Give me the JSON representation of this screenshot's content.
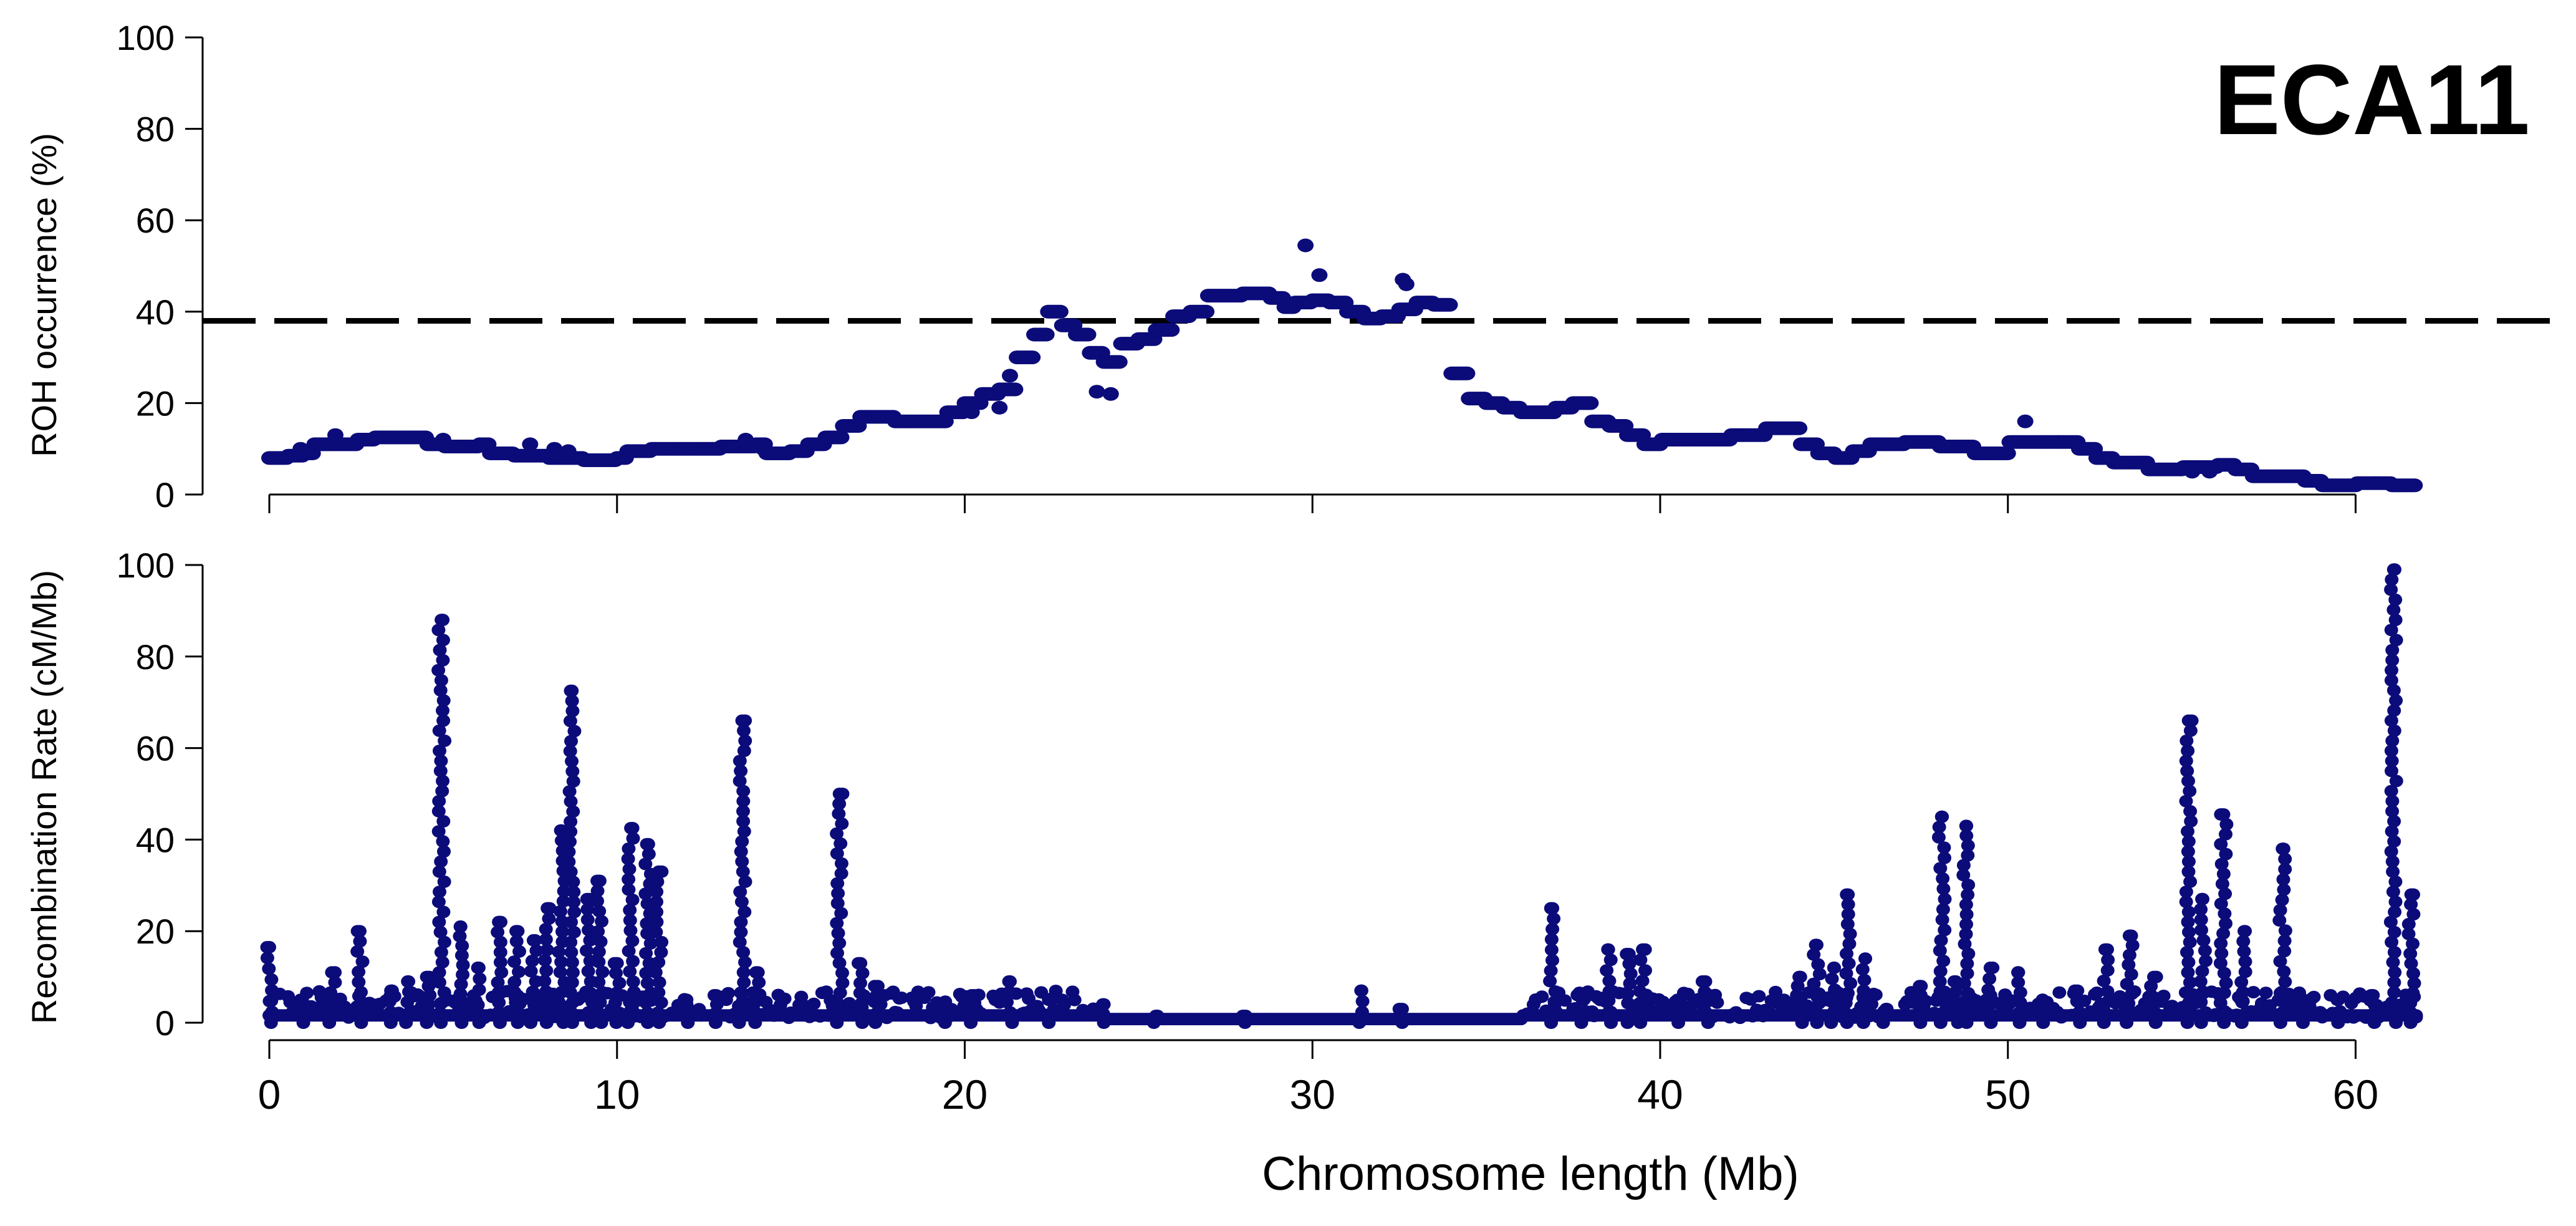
{
  "figure_label": "ECA11",
  "colors": {
    "points": "#0b0b7a",
    "threshold": "#000000",
    "axis": "#000000"
  },
  "chart_data": [
    {
      "type": "scatter",
      "name": "roh",
      "title": "",
      "ylabel": "ROH occurrence (%)",
      "xlabel": "",
      "xlim": [
        0,
        62
      ],
      "ylim": [
        0,
        100
      ],
      "yticks": [
        0,
        20,
        40,
        60,
        80,
        100
      ],
      "xticks": [
        0,
        10,
        20,
        30,
        40,
        50,
        60
      ],
      "threshold": 38,
      "threshold_style": "dashed",
      "profile": [
        [
          0.0,
          8
        ],
        [
          0.5,
          8.5
        ],
        [
          1.0,
          9
        ],
        [
          1.3,
          11
        ],
        [
          2.0,
          11
        ],
        [
          2.5,
          12
        ],
        [
          3.0,
          12.5
        ],
        [
          4.0,
          12.5
        ],
        [
          4.5,
          11
        ],
        [
          5.0,
          10.5
        ],
        [
          6.0,
          11
        ],
        [
          6.3,
          9
        ],
        [
          7.0,
          8.5
        ],
        [
          8.0,
          8
        ],
        [
          9.0,
          7.5
        ],
        [
          10.0,
          8
        ],
        [
          10.3,
          9.5
        ],
        [
          11.0,
          10
        ],
        [
          12.0,
          10
        ],
        [
          13.0,
          10.5
        ],
        [
          14.0,
          11
        ],
        [
          14.3,
          9
        ],
        [
          15.0,
          9.5
        ],
        [
          15.5,
          11
        ],
        [
          16.0,
          12.5
        ],
        [
          16.5,
          15
        ],
        [
          17.0,
          17
        ],
        [
          17.5,
          17
        ],
        [
          18.0,
          16
        ],
        [
          19.0,
          16
        ],
        [
          19.5,
          18
        ],
        [
          20.0,
          20
        ],
        [
          20.5,
          22
        ],
        [
          21.0,
          23
        ],
        [
          21.5,
          30
        ],
        [
          22.0,
          35
        ],
        [
          22.4,
          40
        ],
        [
          22.8,
          37
        ],
        [
          23.2,
          35
        ],
        [
          23.6,
          31
        ],
        [
          24.0,
          29
        ],
        [
          24.5,
          33
        ],
        [
          25.0,
          34
        ],
        [
          25.5,
          36
        ],
        [
          26.0,
          39
        ],
        [
          26.5,
          40
        ],
        [
          27.0,
          43.5
        ],
        [
          28.0,
          44
        ],
        [
          28.8,
          43
        ],
        [
          29.2,
          41
        ],
        [
          29.5,
          42
        ],
        [
          30.0,
          42.5
        ],
        [
          30.5,
          42
        ],
        [
          31.0,
          40
        ],
        [
          31.5,
          38.5
        ],
        [
          32.0,
          39
        ],
        [
          32.5,
          40.5
        ],
        [
          33.0,
          42
        ],
        [
          33.5,
          41.5
        ],
        [
          34.0,
          26.5
        ],
        [
          34.5,
          21
        ],
        [
          35.0,
          20
        ],
        [
          35.5,
          19
        ],
        [
          36.0,
          18
        ],
        [
          36.5,
          18
        ],
        [
          37.0,
          19
        ],
        [
          37.5,
          20
        ],
        [
          38.0,
          16
        ],
        [
          38.5,
          15
        ],
        [
          39.0,
          13
        ],
        [
          39.5,
          11
        ],
        [
          40.0,
          12
        ],
        [
          41.0,
          12
        ],
        [
          42.0,
          13
        ],
        [
          43.0,
          14.5
        ],
        [
          44.0,
          11
        ],
        [
          44.5,
          9
        ],
        [
          45.0,
          8
        ],
        [
          45.5,
          9.5
        ],
        [
          46.0,
          11
        ],
        [
          47.0,
          11.5
        ],
        [
          48.0,
          10.5
        ],
        [
          49.0,
          9
        ],
        [
          50.0,
          11.5
        ],
        [
          51.0,
          11.5
        ],
        [
          52.0,
          10
        ],
        [
          52.5,
          8
        ],
        [
          53.0,
          7
        ],
        [
          54.0,
          5.5
        ],
        [
          55.0,
          6
        ],
        [
          56.0,
          6.5
        ],
        [
          56.5,
          5.5
        ],
        [
          57.0,
          4
        ],
        [
          58.0,
          4
        ],
        [
          58.5,
          3
        ],
        [
          59.0,
          2
        ],
        [
          60.0,
          2.5
        ],
        [
          61.0,
          2
        ],
        [
          61.7,
          1.5
        ]
      ],
      "outliers": [
        [
          0.9,
          10
        ],
        [
          1.9,
          13
        ],
        [
          5.0,
          12
        ],
        [
          7.5,
          11
        ],
        [
          8.2,
          10
        ],
        [
          8.6,
          9.5
        ],
        [
          13.7,
          12
        ],
        [
          14.2,
          10
        ],
        [
          20.2,
          18
        ],
        [
          21.0,
          19
        ],
        [
          21.3,
          26
        ],
        [
          23.8,
          22.5
        ],
        [
          24.2,
          22
        ],
        [
          29.8,
          54.5
        ],
        [
          30.2,
          48
        ],
        [
          32.6,
          47
        ],
        [
          32.7,
          46
        ],
        [
          50.5,
          16
        ],
        [
          55.3,
          5
        ],
        [
          55.8,
          5
        ]
      ]
    },
    {
      "type": "scatter",
      "name": "recombination",
      "title": "",
      "ylabel": "Recombination Rate (cM/Mb)",
      "xlabel": "Chromosome length (Mb)",
      "xlim": [
        0,
        62
      ],
      "ylim": [
        0,
        100
      ],
      "yticks": [
        0,
        20,
        40,
        60,
        80,
        100
      ],
      "xticks": [
        0,
        10,
        20,
        30,
        40,
        50,
        60
      ],
      "peaks": [
        [
          0.0,
          16.5
        ],
        [
          0.9,
          5
        ],
        [
          1.8,
          11
        ],
        [
          2.6,
          20
        ],
        [
          3.5,
          7
        ],
        [
          4.0,
          9
        ],
        [
          4.6,
          10
        ],
        [
          4.95,
          88
        ],
        [
          5.5,
          21
        ],
        [
          6.0,
          12
        ],
        [
          6.6,
          22
        ],
        [
          7.1,
          20
        ],
        [
          7.6,
          18
        ],
        [
          8.0,
          25
        ],
        [
          8.4,
          42
        ],
        [
          8.7,
          72.5
        ],
        [
          9.2,
          27
        ],
        [
          9.5,
          31
        ],
        [
          10.0,
          13
        ],
        [
          10.4,
          42.5
        ],
        [
          10.9,
          39
        ],
        [
          11.2,
          33
        ],
        [
          12.0,
          5
        ],
        [
          12.8,
          6
        ],
        [
          13.6,
          66
        ],
        [
          14.0,
          11
        ],
        [
          16.4,
          50
        ],
        [
          17.0,
          13
        ],
        [
          17.5,
          8
        ],
        [
          19.5,
          3
        ],
        [
          20.2,
          6
        ],
        [
          21.3,
          9
        ],
        [
          22.5,
          5
        ],
        [
          24.0,
          4
        ],
        [
          25.5,
          1.5
        ],
        [
          28.0,
          1.5
        ],
        [
          31.4,
          7
        ],
        [
          32.5,
          3
        ],
        [
          36.9,
          25
        ],
        [
          37.8,
          5
        ],
        [
          38.5,
          16
        ],
        [
          39.1,
          15
        ],
        [
          39.5,
          16
        ],
        [
          40.5,
          5
        ],
        [
          41.3,
          9
        ],
        [
          44.0,
          10
        ],
        [
          44.5,
          17
        ],
        [
          45.0,
          12
        ],
        [
          45.4,
          28
        ],
        [
          45.9,
          14
        ],
        [
          46.5,
          3
        ],
        [
          47.5,
          8
        ],
        [
          48.1,
          45
        ],
        [
          48.5,
          9
        ],
        [
          48.8,
          43
        ],
        [
          49.5,
          12
        ],
        [
          50.3,
          11
        ],
        [
          51.0,
          5
        ],
        [
          52.0,
          7
        ],
        [
          52.8,
          16
        ],
        [
          53.5,
          19
        ],
        [
          54.2,
          10
        ],
        [
          55.2,
          66
        ],
        [
          55.6,
          27
        ],
        [
          56.2,
          45.5
        ],
        [
          56.8,
          20
        ],
        [
          57.9,
          38
        ],
        [
          58.5,
          4
        ],
        [
          59.5,
          5
        ],
        [
          60.5,
          6
        ],
        [
          61.1,
          99
        ],
        [
          61.6,
          28
        ]
      ]
    }
  ]
}
